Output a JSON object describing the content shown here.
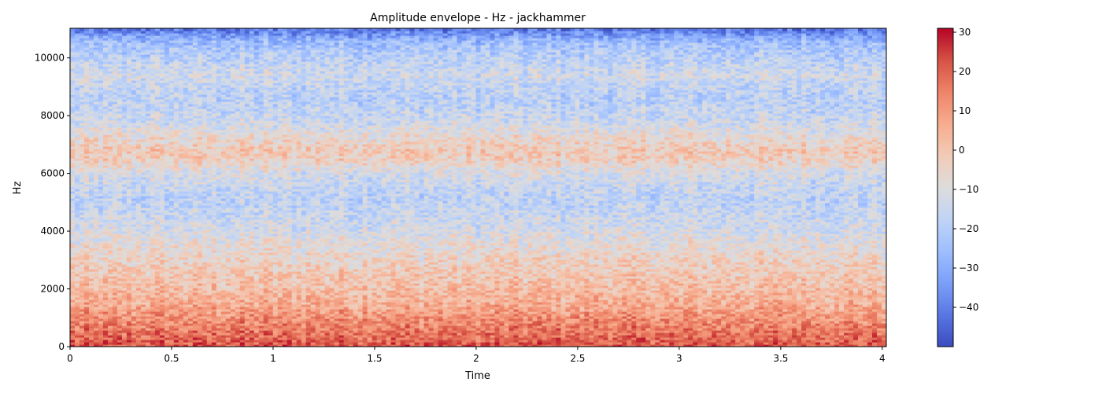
{
  "chart_data": {
    "type": "heatmap",
    "title": "Amplitude envelope - Hz - jackhammer",
    "xlabel": "Time",
    "ylabel": "Hz",
    "xlim": [
      0,
      4.02
    ],
    "ylim": [
      0,
      11025
    ],
    "x_ticks": [
      0,
      0.5,
      1,
      1.5,
      2,
      2.5,
      3,
      3.5,
      4
    ],
    "x_tick_labels": [
      "0",
      "0.5",
      "1",
      "1.5",
      "2",
      "2.5",
      "3",
      "3.5",
      "4"
    ],
    "y_ticks": [
      0,
      2000,
      4000,
      6000,
      8000,
      10000
    ],
    "y_tick_labels": [
      "0",
      "2000",
      "4000",
      "6000",
      "8000",
      "10000"
    ],
    "colormap": "coolwarm",
    "colorbar": {
      "range": [
        -50,
        31
      ],
      "ticks": [
        30,
        20,
        10,
        0,
        -10,
        -20,
        -30,
        -40
      ],
      "tick_labels": [
        "30",
        "20",
        "10",
        "0",
        "−10",
        "−20",
        "−30",
        "−40"
      ],
      "colors": [
        "#3b4cc0",
        "#5977e3",
        "#7b9ff9",
        "#9ebeff",
        "#c0d4f5",
        "#dddcdc",
        "#f2cbb7",
        "#f7ac8e",
        "#ee8468",
        "#d65244",
        "#b40426"
      ]
    },
    "mean_profile_db": {
      "hz": [
        0,
        300,
        600,
        1000,
        1500,
        2000,
        2500,
        3000,
        3500,
        4000,
        4500,
        5000,
        5500,
        6000,
        6500,
        6800,
        7200,
        7800,
        8500,
        9000,
        9400,
        9800,
        10300,
        10600,
        10900,
        11025
      ],
      "db": [
        22,
        19,
        16,
        12,
        6,
        2,
        -1,
        -4,
        -8,
        -12,
        -15,
        -18,
        -16,
        -12,
        -3,
        -1,
        -6,
        -14,
        -19,
        -17,
        -13,
        -17,
        -22,
        -27,
        -38,
        -43
      ]
    }
  }
}
